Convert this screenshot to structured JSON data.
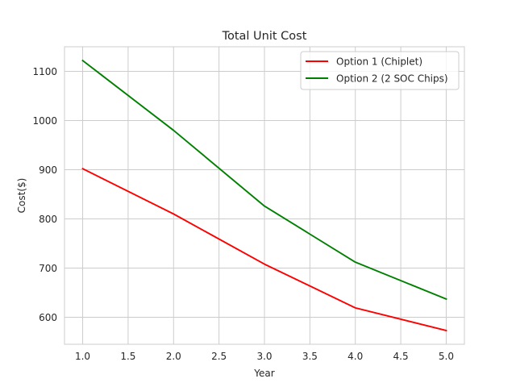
{
  "chart_data": {
    "type": "line",
    "title": "Total Unit Cost",
    "xlabel": "Year",
    "ylabel": "Cost($)",
    "x": [
      1.0,
      2.0,
      3.0,
      4.0,
      5.0
    ],
    "xlim": [
      0.8,
      5.2
    ],
    "ylim": [
      545,
      1150
    ],
    "xticks": [
      1.0,
      1.5,
      2.0,
      2.5,
      3.0,
      3.5,
      4.0,
      4.5,
      5.0
    ],
    "xtick_labels": [
      "1.0",
      "1.5",
      "2.0",
      "2.5",
      "3.0",
      "3.5",
      "4.0",
      "4.5",
      "5.0"
    ],
    "yticks": [
      600,
      700,
      800,
      900,
      1000,
      1100
    ],
    "ytick_labels": [
      "600",
      "700",
      "800",
      "900",
      "1000",
      "1100"
    ],
    "grid": true,
    "legend_position": "top-right",
    "series": [
      {
        "name": "Option 1 (Chiplet)",
        "color": "#ff0000",
        "values": [
          902,
          810,
          708,
          619,
          573
        ]
      },
      {
        "name": "Option 2 (2 SOC Chips)",
        "color": "#008000",
        "values": [
          1122,
          980,
          826,
          712,
          637
        ]
      }
    ]
  }
}
